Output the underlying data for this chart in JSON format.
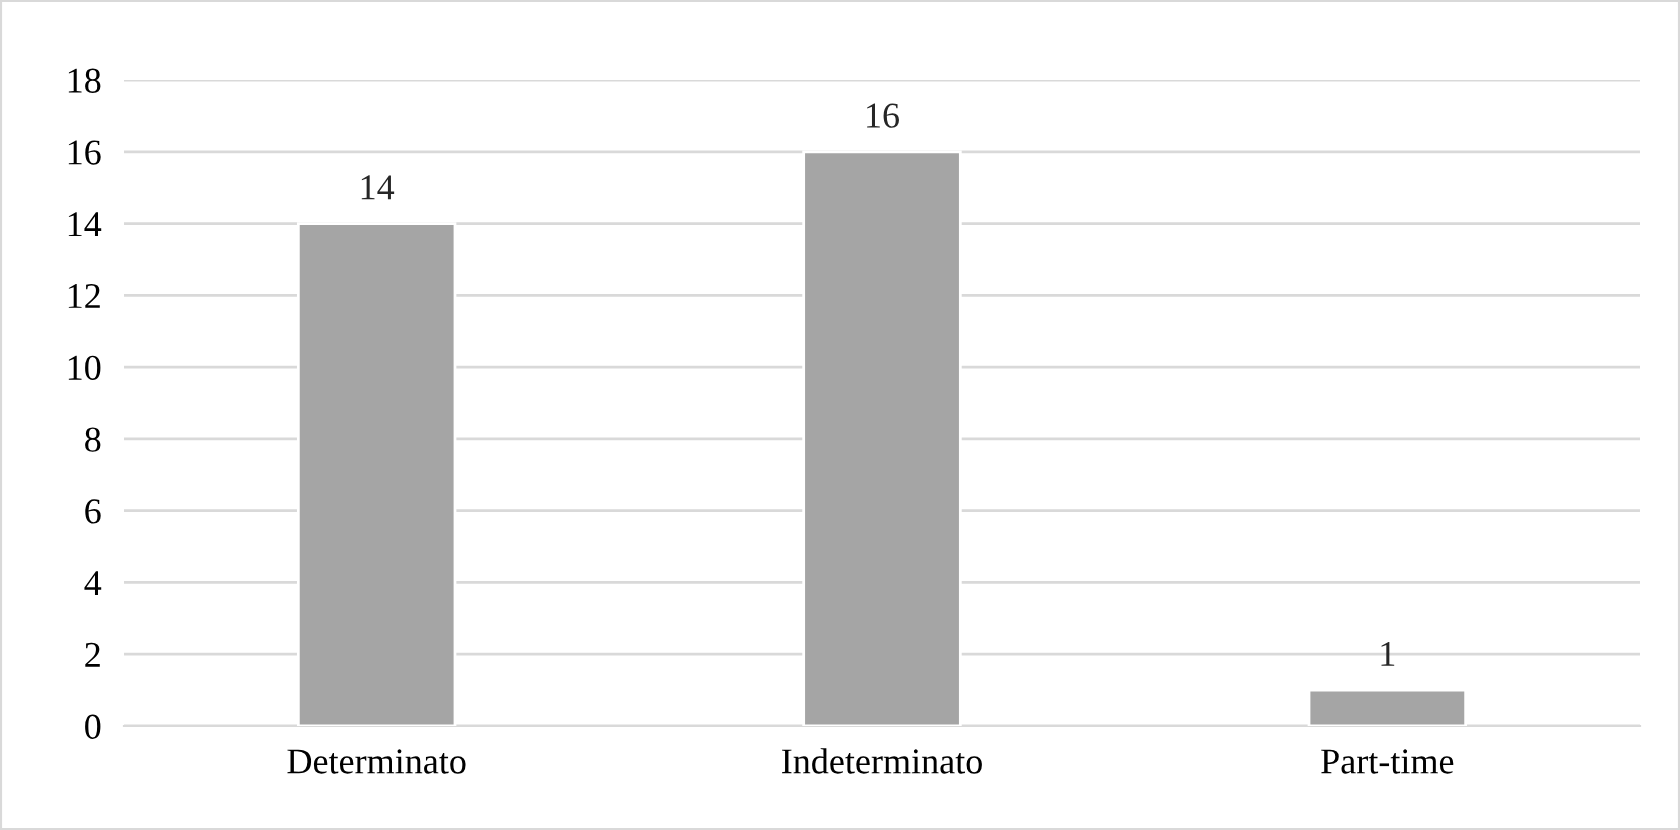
{
  "chart_data": {
    "type": "bar",
    "categories": [
      "Determinato",
      "Indeterminato",
      "Part-time"
    ],
    "values": [
      14,
      16,
      1
    ],
    "color": "#a5a5a5",
    "ylim": [
      0,
      18
    ],
    "yticks": [
      0,
      2,
      4,
      6,
      8,
      10,
      12,
      14,
      16,
      18
    ],
    "grid": "y",
    "data_labels": true
  }
}
